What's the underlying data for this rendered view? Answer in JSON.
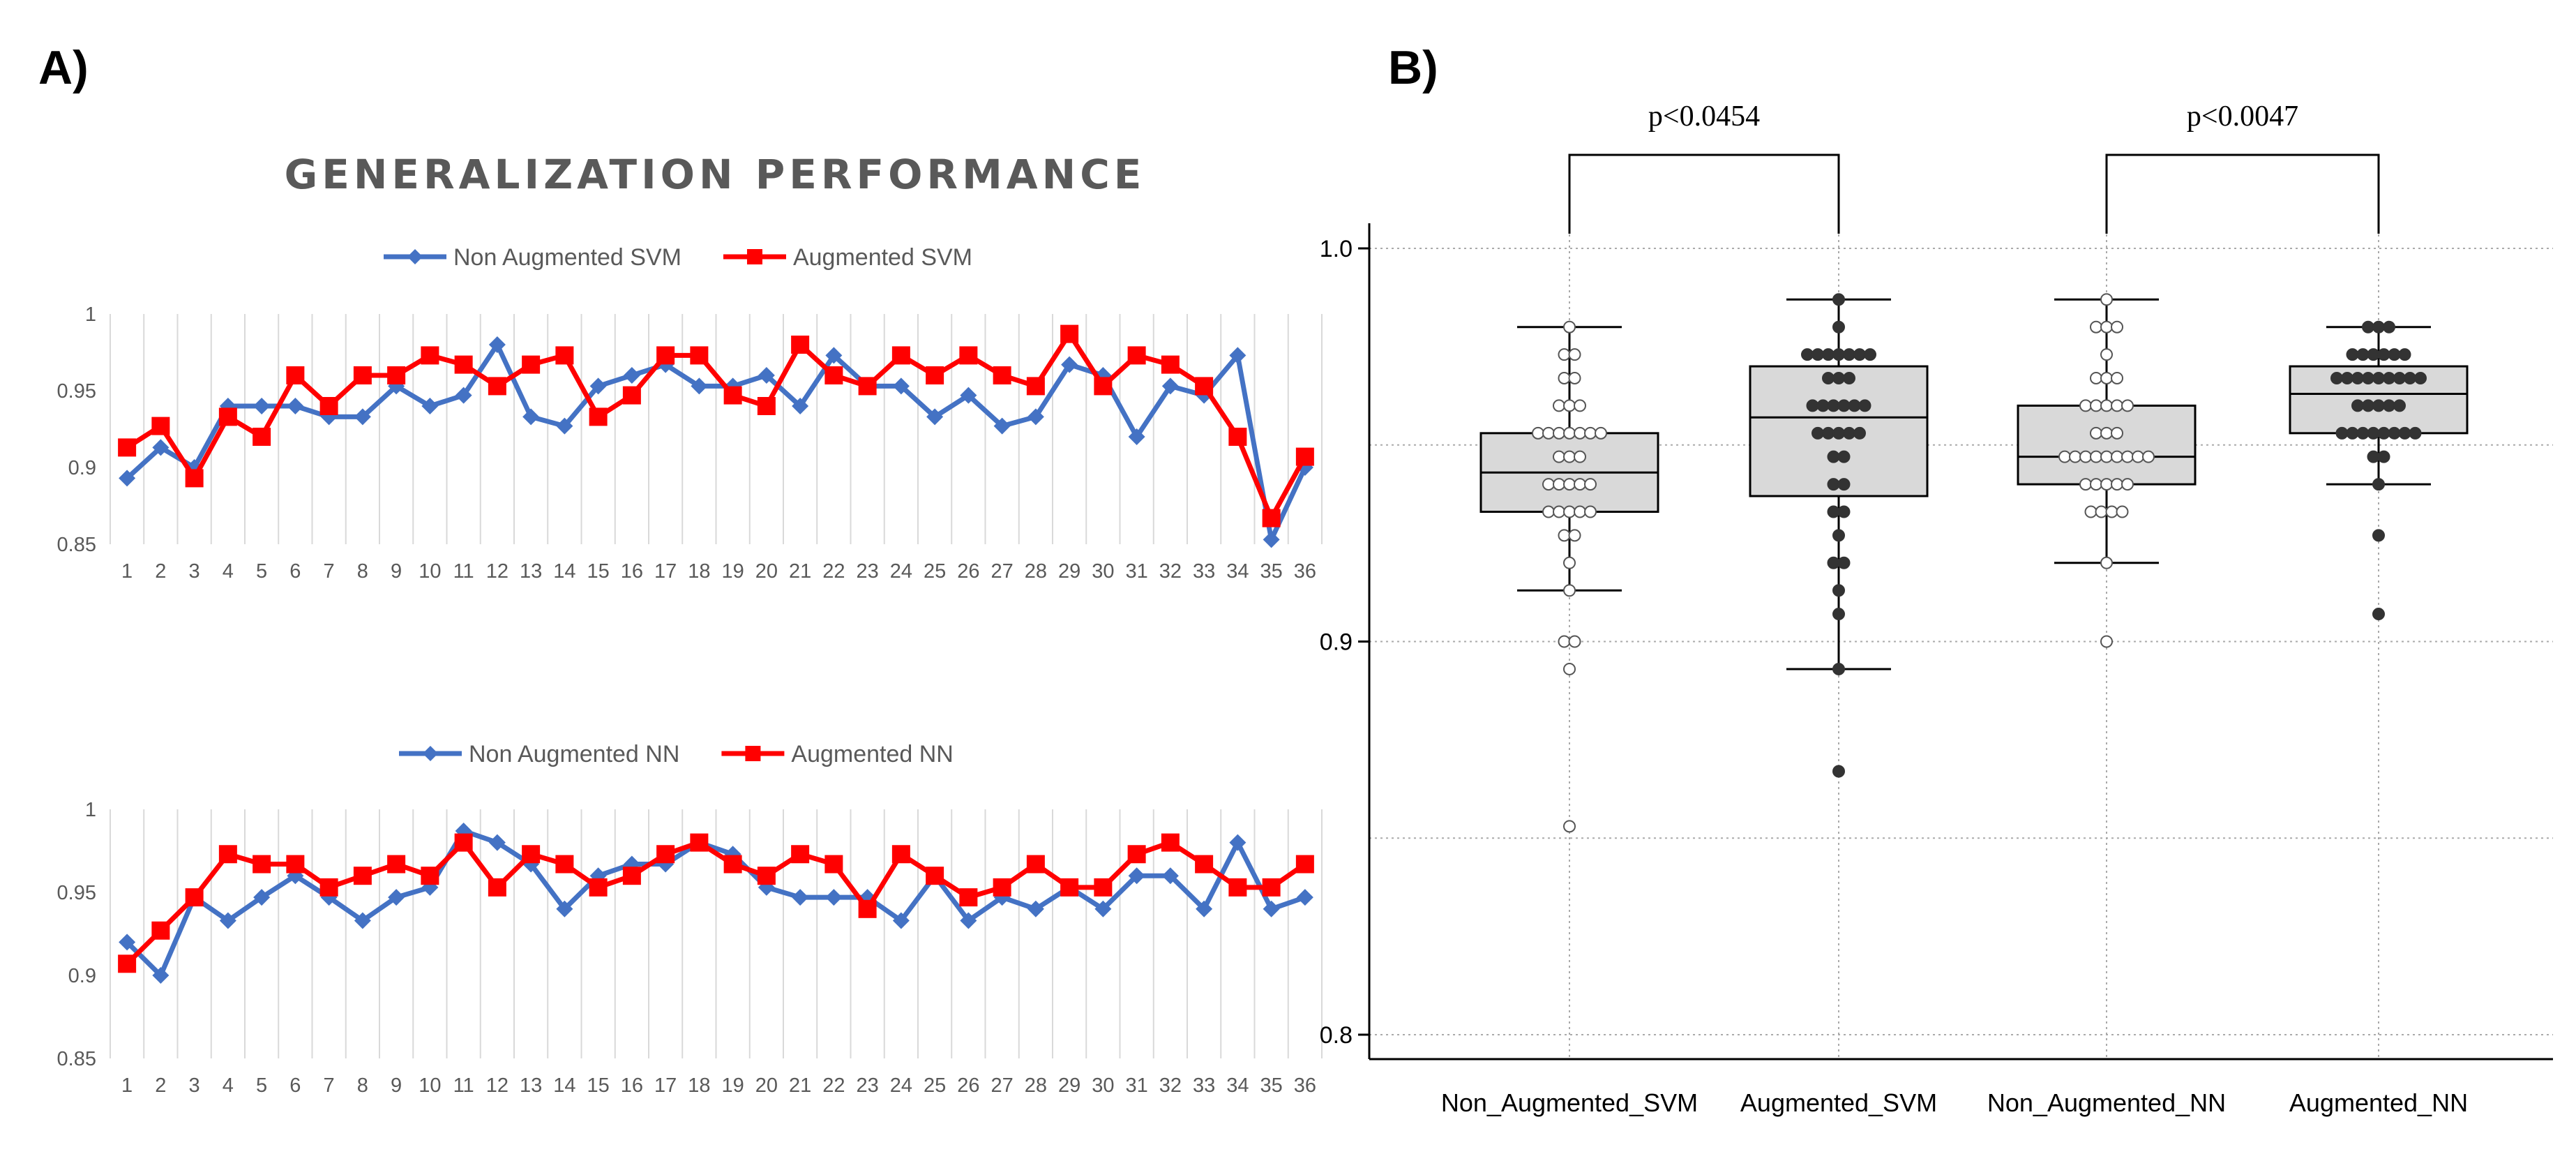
{
  "panels": {
    "a_label": "A)",
    "b_label": "B)"
  },
  "colors": {
    "non_augmented": "#4472c4",
    "augmented": "#ff0000",
    "grid": "#d9d9d9",
    "axis_text": "#595959",
    "box_fill": "#d9d9d9",
    "point_open": "#ffffff",
    "point_filled": "#333333"
  },
  "chart_data": [
    {
      "type": "line",
      "title": "GENERALIZATION PERFORMANCE",
      "xlabel": "",
      "ylabel": "",
      "ylim": [
        0.85,
        1.0
      ],
      "yticks": [
        "0.85",
        "0.9",
        "0.95",
        "1"
      ],
      "ytick_values": [
        0.85,
        0.9,
        0.95,
        1.0
      ],
      "x": [
        "1",
        "2",
        "3",
        "4",
        "5",
        "6",
        "7",
        "8",
        "9",
        "10",
        "11",
        "12",
        "13",
        "14",
        "15",
        "16",
        "17",
        "18",
        "19",
        "20",
        "21",
        "22",
        "23",
        "24",
        "25",
        "26",
        "27",
        "28",
        "29",
        "30",
        "31",
        "32",
        "33",
        "34",
        "35",
        "36"
      ],
      "legend_position": "top-center",
      "series": [
        {
          "name": "Non Augmented SVM",
          "marker": "diamond",
          "values": [
            0.893,
            0.913,
            0.9,
            0.94,
            0.94,
            0.94,
            0.933,
            0.933,
            0.953,
            0.94,
            0.947,
            0.98,
            0.933,
            0.927,
            0.953,
            0.96,
            0.967,
            0.953,
            0.953,
            0.96,
            0.94,
            0.973,
            0.953,
            0.953,
            0.933,
            0.947,
            0.927,
            0.933,
            0.967,
            0.96,
            0.92,
            0.953,
            0.947,
            0.973,
            0.853,
            0.9
          ]
        },
        {
          "name": "Augmented SVM",
          "marker": "square",
          "values": [
            0.913,
            0.927,
            0.893,
            0.933,
            0.92,
            0.96,
            0.94,
            0.96,
            0.96,
            0.973,
            0.967,
            0.953,
            0.967,
            0.973,
            0.933,
            0.947,
            0.973,
            0.973,
            0.947,
            0.94,
            0.98,
            0.96,
            0.953,
            0.973,
            0.96,
            0.973,
            0.96,
            0.953,
            0.987,
            0.953,
            0.973,
            0.967,
            0.953,
            0.92,
            0.867,
            0.907
          ]
        }
      ]
    },
    {
      "type": "line",
      "title": "",
      "xlabel": "",
      "ylabel": "",
      "ylim": [
        0.85,
        1.0
      ],
      "yticks": [
        "0.85",
        "0.9",
        "0.95",
        "1"
      ],
      "ytick_values": [
        0.85,
        0.9,
        0.95,
        1.0
      ],
      "x": [
        "1",
        "2",
        "3",
        "4",
        "5",
        "6",
        "7",
        "8",
        "9",
        "10",
        "11",
        "12",
        "13",
        "14",
        "15",
        "16",
        "17",
        "18",
        "19",
        "20",
        "21",
        "22",
        "23",
        "24",
        "25",
        "26",
        "27",
        "28",
        "29",
        "30",
        "31",
        "32",
        "33",
        "34",
        "35",
        "36"
      ],
      "legend_position": "top-center",
      "series": [
        {
          "name": "Non Augmented NN",
          "marker": "diamond",
          "values": [
            0.92,
            0.9,
            0.947,
            0.933,
            0.947,
            0.96,
            0.947,
            0.933,
            0.947,
            0.953,
            0.987,
            0.98,
            0.967,
            0.94,
            0.96,
            0.967,
            0.967,
            0.98,
            0.973,
            0.953,
            0.947,
            0.947,
            0.947,
            0.933,
            0.96,
            0.933,
            0.947,
            0.94,
            0.953,
            0.94,
            0.96,
            0.96,
            0.94,
            0.98,
            0.94,
            0.947
          ]
        },
        {
          "name": "Augmented NN",
          "marker": "square",
          "values": [
            0.907,
            0.927,
            0.947,
            0.973,
            0.967,
            0.967,
            0.953,
            0.96,
            0.967,
            0.96,
            0.98,
            0.953,
            0.973,
            0.967,
            0.953,
            0.96,
            0.973,
            0.98,
            0.967,
            0.96,
            0.973,
            0.967,
            0.94,
            0.973,
            0.96,
            0.947,
            0.953,
            0.967,
            0.953,
            0.953,
            0.973,
            0.98,
            0.967,
            0.953,
            0.953,
            0.967
          ]
        }
      ]
    },
    {
      "type": "box",
      "title": "",
      "xlabel": "",
      "ylabel": "",
      "ylim": [
        0.8,
        1.0
      ],
      "yticks": [
        "0.8",
        "0.9",
        "1.0"
      ],
      "ytick_values": [
        0.8,
        0.9,
        1.0
      ],
      "categories": [
        "Non_Augmented_SVM",
        "Augmented_SVM",
        "Non_Augmented_NN",
        "Augmented_NN"
      ],
      "boxes": [
        {
          "name": "Non_Augmented_SVM",
          "min": 0.913,
          "q1": 0.933,
          "median": 0.943,
          "q3": 0.953,
          "max": 0.98,
          "fill": "open",
          "points": [
            0.893,
            0.913,
            0.9,
            0.94,
            0.94,
            0.94,
            0.933,
            0.933,
            0.953,
            0.94,
            0.947,
            0.98,
            0.933,
            0.927,
            0.953,
            0.96,
            0.967,
            0.953,
            0.953,
            0.96,
            0.94,
            0.973,
            0.953,
            0.953,
            0.933,
            0.947,
            0.927,
            0.933,
            0.967,
            0.96,
            0.92,
            0.953,
            0.947,
            0.973,
            0.853,
            0.9
          ]
        },
        {
          "name": "Augmented_SVM",
          "min": 0.893,
          "q1": 0.937,
          "median": 0.957,
          "q3": 0.97,
          "max": 0.987,
          "fill": "filled",
          "points": [
            0.913,
            0.927,
            0.893,
            0.933,
            0.92,
            0.96,
            0.94,
            0.96,
            0.96,
            0.973,
            0.967,
            0.953,
            0.967,
            0.973,
            0.933,
            0.947,
            0.973,
            0.973,
            0.947,
            0.94,
            0.98,
            0.96,
            0.953,
            0.973,
            0.96,
            0.973,
            0.96,
            0.953,
            0.987,
            0.953,
            0.973,
            0.967,
            0.953,
            0.92,
            0.867,
            0.907
          ]
        },
        {
          "name": "Non_Augmented_NN",
          "min": 0.92,
          "q1": 0.94,
          "median": 0.947,
          "q3": 0.96,
          "max": 0.987,
          "fill": "open",
          "points": [
            0.92,
            0.9,
            0.947,
            0.933,
            0.947,
            0.96,
            0.947,
            0.933,
            0.947,
            0.953,
            0.987,
            0.98,
            0.967,
            0.94,
            0.96,
            0.967,
            0.967,
            0.98,
            0.973,
            0.953,
            0.947,
            0.947,
            0.947,
            0.933,
            0.96,
            0.933,
            0.947,
            0.94,
            0.953,
            0.94,
            0.96,
            0.96,
            0.94,
            0.98,
            0.94,
            0.947
          ]
        },
        {
          "name": "Augmented_NN",
          "min": 0.94,
          "q1": 0.953,
          "median": 0.963,
          "q3": 0.97,
          "max": 0.98,
          "fill": "filled",
          "points": [
            0.907,
            0.927,
            0.947,
            0.973,
            0.967,
            0.967,
            0.953,
            0.96,
            0.967,
            0.96,
            0.98,
            0.953,
            0.973,
            0.967,
            0.953,
            0.96,
            0.973,
            0.98,
            0.967,
            0.96,
            0.973,
            0.967,
            0.94,
            0.973,
            0.96,
            0.947,
            0.953,
            0.967,
            0.953,
            0.953,
            0.973,
            0.98,
            0.967,
            0.953,
            0.953,
            0.967
          ]
        }
      ],
      "comparisons": [
        {
          "between": [
            "Non_Augmented_SVM",
            "Augmented_SVM"
          ],
          "label": "p<0.0454"
        },
        {
          "between": [
            "Non_Augmented_NN",
            "Augmented_NN"
          ],
          "label": "p<0.0047"
        }
      ]
    }
  ]
}
